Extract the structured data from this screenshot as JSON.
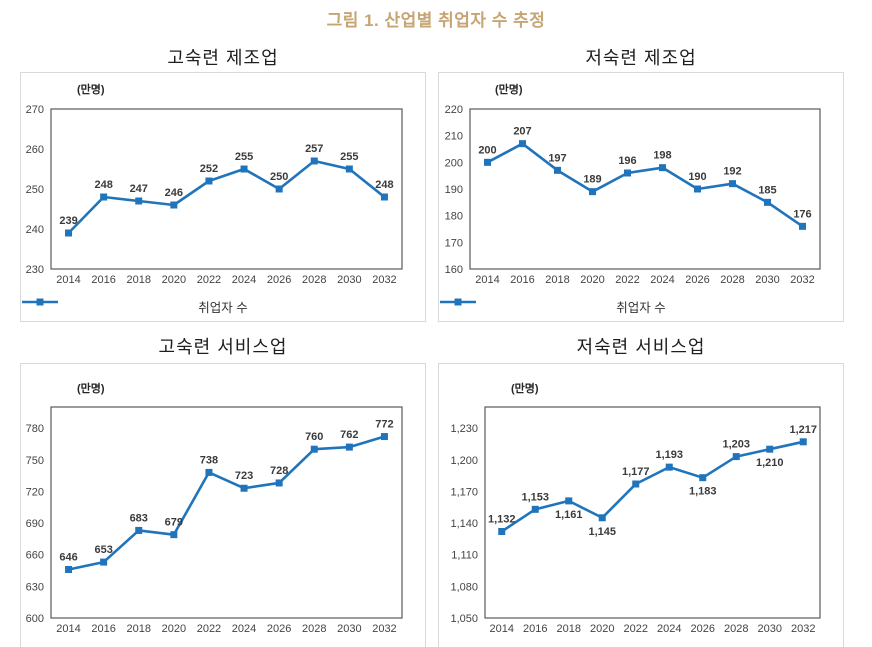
{
  "figure_title": "그림 1. 산업별 취업자 수 추정",
  "colors": {
    "figure_title": "#c6a573",
    "series_line": "#2074bc",
    "panel_border": "#d9d9d9",
    "plot_border": "#595959",
    "tick_label": "#444444",
    "data_label": "#3b3b3b"
  },
  "legend": {
    "label": "취업자 수",
    "position": "bottom"
  },
  "x_categories": [
    "2014",
    "2016",
    "2018",
    "2020",
    "2022",
    "2024",
    "2026",
    "2028",
    "2030",
    "2032"
  ],
  "chart_data": [
    {
      "type": "line",
      "title": "고숙련 제조업",
      "unit": "(만명)",
      "series_name": "취업자 수",
      "x": [
        "2014",
        "2016",
        "2018",
        "2020",
        "2022",
        "2024",
        "2026",
        "2028",
        "2030",
        "2032"
      ],
      "values": [
        239,
        248,
        247,
        246,
        252,
        255,
        250,
        257,
        255,
        248
      ],
      "labels": [
        "239",
        "248",
        "247",
        "246",
        "252",
        "255",
        "250",
        "257",
        "255",
        "248"
      ],
      "label_side": [
        "above",
        "above",
        "above",
        "above",
        "above",
        "above",
        "above",
        "above",
        "above",
        "above"
      ],
      "ylim": [
        230,
        270
      ],
      "yticks": [
        230,
        240,
        250,
        260,
        270
      ],
      "ytick_labels": [
        "230",
        "240",
        "250",
        "260",
        "270"
      ],
      "grid": false,
      "show_legend": true
    },
    {
      "type": "line",
      "title": "저숙련 제조업",
      "unit": "(만명)",
      "series_name": "취업자 수",
      "x": [
        "2014",
        "2016",
        "2018",
        "2020",
        "2022",
        "2024",
        "2026",
        "2028",
        "2030",
        "2032"
      ],
      "values": [
        200,
        207,
        197,
        189,
        196,
        198,
        190,
        192,
        185,
        176
      ],
      "labels": [
        "200",
        "207",
        "197",
        "189",
        "196",
        "198",
        "190",
        "192",
        "185",
        "176"
      ],
      "label_side": [
        "above",
        "above",
        "above",
        "above",
        "above",
        "above",
        "above",
        "above",
        "above",
        "above"
      ],
      "ylim": [
        160,
        220
      ],
      "yticks": [
        160,
        170,
        180,
        190,
        200,
        210,
        220
      ],
      "ytick_labels": [
        "160",
        "170",
        "180",
        "190",
        "200",
        "210",
        "220"
      ],
      "grid": false,
      "show_legend": true
    },
    {
      "type": "line",
      "title": "고숙련 서비스업",
      "unit": "(만명)",
      "series_name": "취업자 수",
      "x": [
        "2014",
        "2016",
        "2018",
        "2020",
        "2022",
        "2024",
        "2026",
        "2028",
        "2030",
        "2032"
      ],
      "values": [
        646,
        653,
        683,
        679,
        738,
        723,
        728,
        760,
        762,
        772
      ],
      "labels": [
        "646",
        "653",
        "683",
        "679",
        "738",
        "723",
        "728",
        "760",
        "762",
        "772"
      ],
      "label_side": [
        "above",
        "above",
        "above",
        "above",
        "above",
        "above",
        "above",
        "above",
        "above",
        "above"
      ],
      "ylim": [
        600,
        800
      ],
      "yticks": [
        600,
        630,
        660,
        690,
        720,
        750,
        780
      ],
      "ytick_labels": [
        "600",
        "630",
        "660",
        "690",
        "720",
        "750",
        "780"
      ],
      "grid": false,
      "show_legend": false
    },
    {
      "type": "line",
      "title": "저숙련 서비스업",
      "unit": "(만명)",
      "series_name": "취업자 수",
      "x": [
        "2014",
        "2016",
        "2018",
        "2020",
        "2022",
        "2024",
        "2026",
        "2028",
        "2030",
        "2032"
      ],
      "values": [
        1132,
        1153,
        1161,
        1145,
        1177,
        1193,
        1183,
        1203,
        1210,
        1217
      ],
      "labels": [
        "1,132",
        "1,153",
        "1,161",
        "1,145",
        "1,177",
        "1,193",
        "1,183",
        "1,203",
        "1,210",
        "1,217"
      ],
      "label_side": [
        "above",
        "above",
        "below",
        "below",
        "above",
        "above",
        "below",
        "above",
        "below",
        "above"
      ],
      "ylim": [
        1050,
        1250
      ],
      "yticks": [
        1050,
        1080,
        1110,
        1140,
        1170,
        1200,
        1230
      ],
      "ytick_labels": [
        "1,050",
        "1,080",
        "1,110",
        "1,140",
        "1,170",
        "1,200",
        "1,230"
      ],
      "grid": false,
      "show_legend": false
    }
  ]
}
